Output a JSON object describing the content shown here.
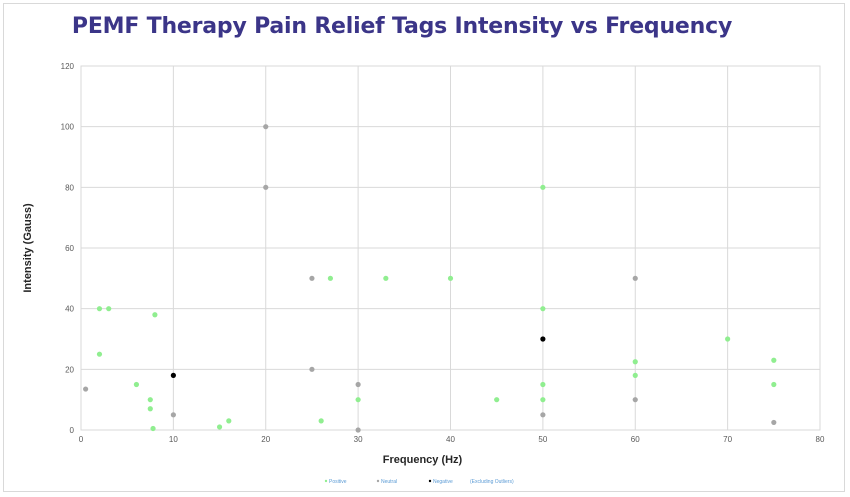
{
  "chart_data": {
    "type": "scatter",
    "title": "PEMF Therapy Pain Relief Tags Intensity vs Frequency",
    "xlabel": "Frequency (Hz)",
    "ylabel": "Intensity (Gauss)",
    "xlim": [
      0,
      80
    ],
    "ylim": [
      0,
      120
    ],
    "xticks": [
      0,
      10,
      20,
      30,
      40,
      50,
      60,
      70,
      80
    ],
    "yticks": [
      0,
      20,
      40,
      60,
      80,
      100,
      120
    ],
    "grid": true,
    "legend_position": "bottom",
    "legend_note": "(Excluding Outliers)",
    "series": [
      {
        "name": "Positive",
        "color": "#90ee90",
        "points": [
          [
            2,
            40
          ],
          [
            3,
            40
          ],
          [
            2,
            25
          ],
          [
            8,
            38
          ],
          [
            6,
            15
          ],
          [
            7.5,
            10
          ],
          [
            7.5,
            7
          ],
          [
            7.8,
            0.5
          ],
          [
            15,
            1
          ],
          [
            16,
            3
          ],
          [
            26,
            3
          ],
          [
            27,
            50
          ],
          [
            30,
            10
          ],
          [
            33,
            50
          ],
          [
            40,
            50
          ],
          [
            45,
            10
          ],
          [
            50,
            80
          ],
          [
            50,
            40
          ],
          [
            50,
            15
          ],
          [
            50,
            10
          ],
          [
            60,
            22.5
          ],
          [
            60,
            18
          ],
          [
            70,
            30
          ],
          [
            75,
            23
          ],
          [
            75,
            15
          ]
        ]
      },
      {
        "name": "Neutral",
        "color": "#a6a6a6",
        "points": [
          [
            0.5,
            13.5
          ],
          [
            10,
            5
          ],
          [
            20,
            100
          ],
          [
            20,
            80
          ],
          [
            25,
            50
          ],
          [
            25,
            20
          ],
          [
            30,
            15
          ],
          [
            30,
            0
          ],
          [
            50,
            5
          ],
          [
            60,
            50
          ],
          [
            60,
            10
          ],
          [
            75,
            2.5
          ]
        ]
      },
      {
        "name": "Negative",
        "color": "#000000",
        "points": [
          [
            10,
            18
          ],
          [
            50,
            30
          ]
        ]
      }
    ]
  }
}
